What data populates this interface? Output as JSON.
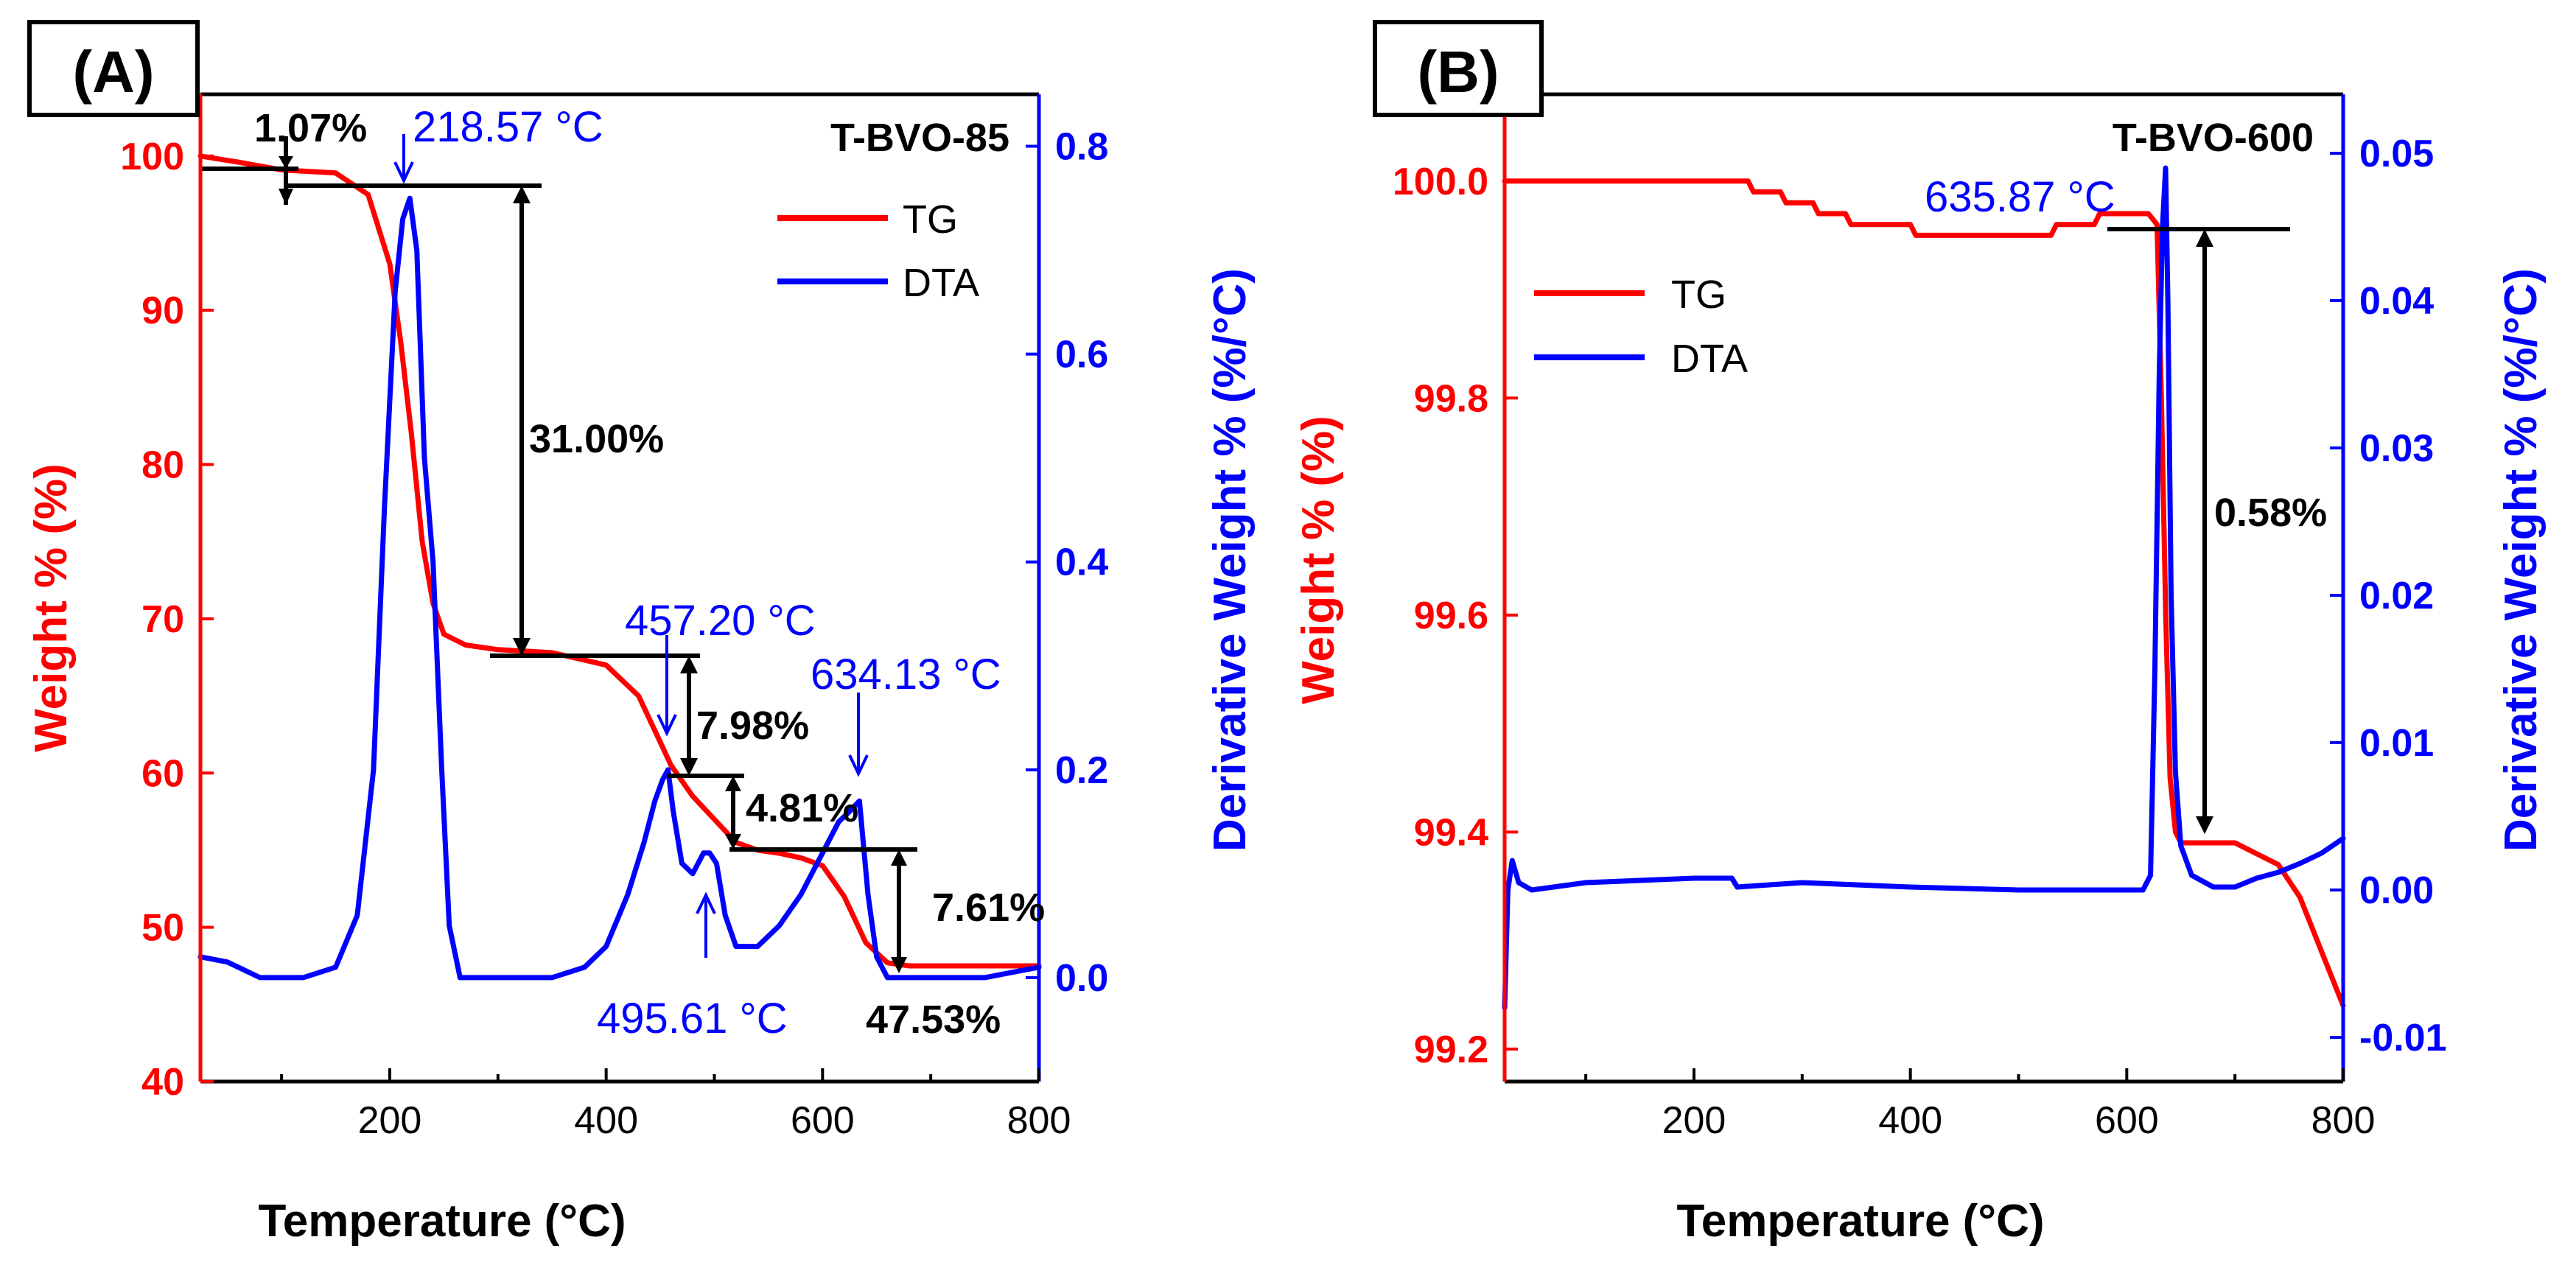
{
  "colors": {
    "tg": "#ff0000",
    "dta": "#0000ff",
    "axis": "#000000",
    "annotation": "#000000"
  },
  "chart_data": [
    {
      "panel_label": "(A)",
      "type": "line",
      "sample": "T-BVO-85",
      "xlabel": "Temperature (°C)",
      "ylabel_left": "Weight % (%)",
      "ylabel_right": "Derivative Weight % (%/°C)",
      "xlim": [
        25,
        800
      ],
      "ylim_left": [
        40,
        104
      ],
      "ylim_right": [
        -0.1,
        0.85
      ],
      "xticks": [
        200,
        400,
        600,
        800
      ],
      "xtick_labels": [
        "200",
        "400",
        "600",
        "800"
      ],
      "yticks_left": [
        40,
        50,
        60,
        70,
        80,
        90,
        100
      ],
      "ytick_labels_left": [
        "40",
        "50",
        "60",
        "70",
        "80",
        "90",
        "100"
      ],
      "yticks_right": [
        0.0,
        0.2,
        0.4,
        0.6,
        0.8
      ],
      "ytick_labels_right": [
        "0.0",
        "0.2",
        "0.4",
        "0.6",
        "0.8"
      ],
      "legend": [
        "TG",
        "DTA"
      ],
      "legend_position": "top-right",
      "series": [
        {
          "name": "TG",
          "axis": "left",
          "x": [
            25,
            60,
            100,
            150,
            180,
            200,
            210,
            220,
            230,
            240,
            250,
            270,
            300,
            350,
            400,
            430,
            450,
            460,
            480,
            500,
            520,
            540,
            560,
            580,
            600,
            620,
            640,
            660,
            680,
            700,
            750,
            800
          ],
          "y": [
            100,
            99.6,
            99.1,
            98.9,
            97.5,
            93,
            88,
            82,
            75,
            71,
            69,
            68.3,
            68,
            67.8,
            67,
            65,
            62,
            60.5,
            58.5,
            57,
            55.5,
            55,
            54.8,
            54.5,
            54,
            52,
            49,
            47.7,
            47.5,
            47.5,
            47.5,
            47.5
          ]
        },
        {
          "name": "DTA",
          "axis": "right",
          "x": [
            25,
            50,
            80,
            120,
            150,
            170,
            185,
            195,
            205,
            212,
            218.57,
            225,
            232,
            240,
            248,
            255,
            265,
            300,
            350,
            380,
            400,
            420,
            435,
            445,
            452,
            457.2,
            462,
            470,
            480,
            490,
            495.61,
            502,
            510,
            520,
            540,
            560,
            580,
            600,
            615,
            625,
            634.13,
            642,
            650,
            660,
            700,
            750,
            800
          ],
          "y": [
            0.02,
            0.015,
            0.0,
            0.0,
            0.01,
            0.06,
            0.2,
            0.45,
            0.66,
            0.73,
            0.75,
            0.7,
            0.5,
            0.4,
            0.2,
            0.05,
            0.0,
            0.0,
            0.0,
            0.01,
            0.03,
            0.08,
            0.13,
            0.17,
            0.19,
            0.2,
            0.16,
            0.11,
            0.1,
            0.12,
            0.12,
            0.11,
            0.06,
            0.03,
            0.03,
            0.05,
            0.08,
            0.12,
            0.15,
            0.16,
            0.17,
            0.08,
            0.02,
            0.0,
            0.0,
            0.0,
            0.01
          ]
        }
      ],
      "annotations": {
        "sample_label": "T-BVO-85",
        "dta_peaks": [
          "218.57 °C",
          "457.20 °C",
          "495.61 °C",
          "634.13 °C"
        ],
        "weight_losses": [
          "1.07%",
          "31.00%",
          "7.98%",
          "4.81%",
          "7.61%"
        ],
        "residual": "47.53%"
      }
    },
    {
      "panel_label": "(B)",
      "type": "line",
      "sample": "T-BVO-600",
      "xlabel": "Temperature (°C)",
      "ylabel_left": "Weight % (%)",
      "ylabel_right": "Derivative Weight % (%/°C)",
      "xlim": [
        25,
        800
      ],
      "ylim_left": [
        99.17,
        100.08
      ],
      "ylim_right": [
        -0.013,
        0.054
      ],
      "xticks": [
        200,
        400,
        600,
        800
      ],
      "xtick_labels": [
        "200",
        "400",
        "600",
        "800"
      ],
      "yticks_left": [
        99.2,
        99.4,
        99.6,
        99.8,
        100.0
      ],
      "ytick_labels_left": [
        "99.2",
        "99.4",
        "99.6",
        "99.8",
        "100.0"
      ],
      "yticks_right": [
        -0.01,
        0.0,
        0.01,
        0.02,
        0.03,
        0.04,
        0.05
      ],
      "ytick_labels_right": [
        "-0.01",
        "0.00",
        "0.01",
        "0.02",
        "0.03",
        "0.04",
        "0.05"
      ],
      "legend": [
        "TG",
        "DTA"
      ],
      "legend_position": "top-left",
      "series": [
        {
          "name": "TG",
          "axis": "left",
          "x": [
            25,
            100,
            200,
            250,
            255,
            280,
            285,
            310,
            315,
            340,
            345,
            400,
            405,
            530,
            535,
            570,
            575,
            620,
            628,
            632,
            636,
            640,
            645,
            650,
            660,
            700,
            720,
            740,
            760,
            780,
            800
          ],
          "y": [
            100,
            100,
            100,
            100,
            99.99,
            99.99,
            99.98,
            99.98,
            99.97,
            99.97,
            99.96,
            99.96,
            99.95,
            99.95,
            99.96,
            99.96,
            99.97,
            99.97,
            99.96,
            99.8,
            99.6,
            99.45,
            99.4,
            99.39,
            99.39,
            99.39,
            99.38,
            99.37,
            99.34,
            99.29,
            99.24
          ]
        },
        {
          "name": "DTA",
          "axis": "right",
          "x": [
            25,
            28,
            32,
            38,
            50,
            100,
            200,
            235,
            240,
            300,
            400,
            500,
            580,
            615,
            622,
            626,
            630,
            633,
            635.87,
            638,
            641,
            645,
            650,
            660,
            680,
            700,
            720,
            740,
            760,
            780,
            800
          ],
          "y": [
            -0.008,
            0.0,
            0.002,
            0.0005,
            0.0,
            0.0005,
            0.0008,
            0.0008,
            0.0002,
            0.0005,
            0.0002,
            0.0,
            0.0,
            0.0,
            0.001,
            0.015,
            0.035,
            0.045,
            0.049,
            0.04,
            0.02,
            0.008,
            0.003,
            0.001,
            0.0002,
            0.0002,
            0.0008,
            0.0012,
            0.0018,
            0.0025,
            0.0035
          ]
        }
      ],
      "annotations": {
        "sample_label": "T-BVO-600",
        "dta_peaks": [
          "635.87 °C"
        ],
        "weight_losses": [
          "0.58%"
        ]
      }
    }
  ]
}
